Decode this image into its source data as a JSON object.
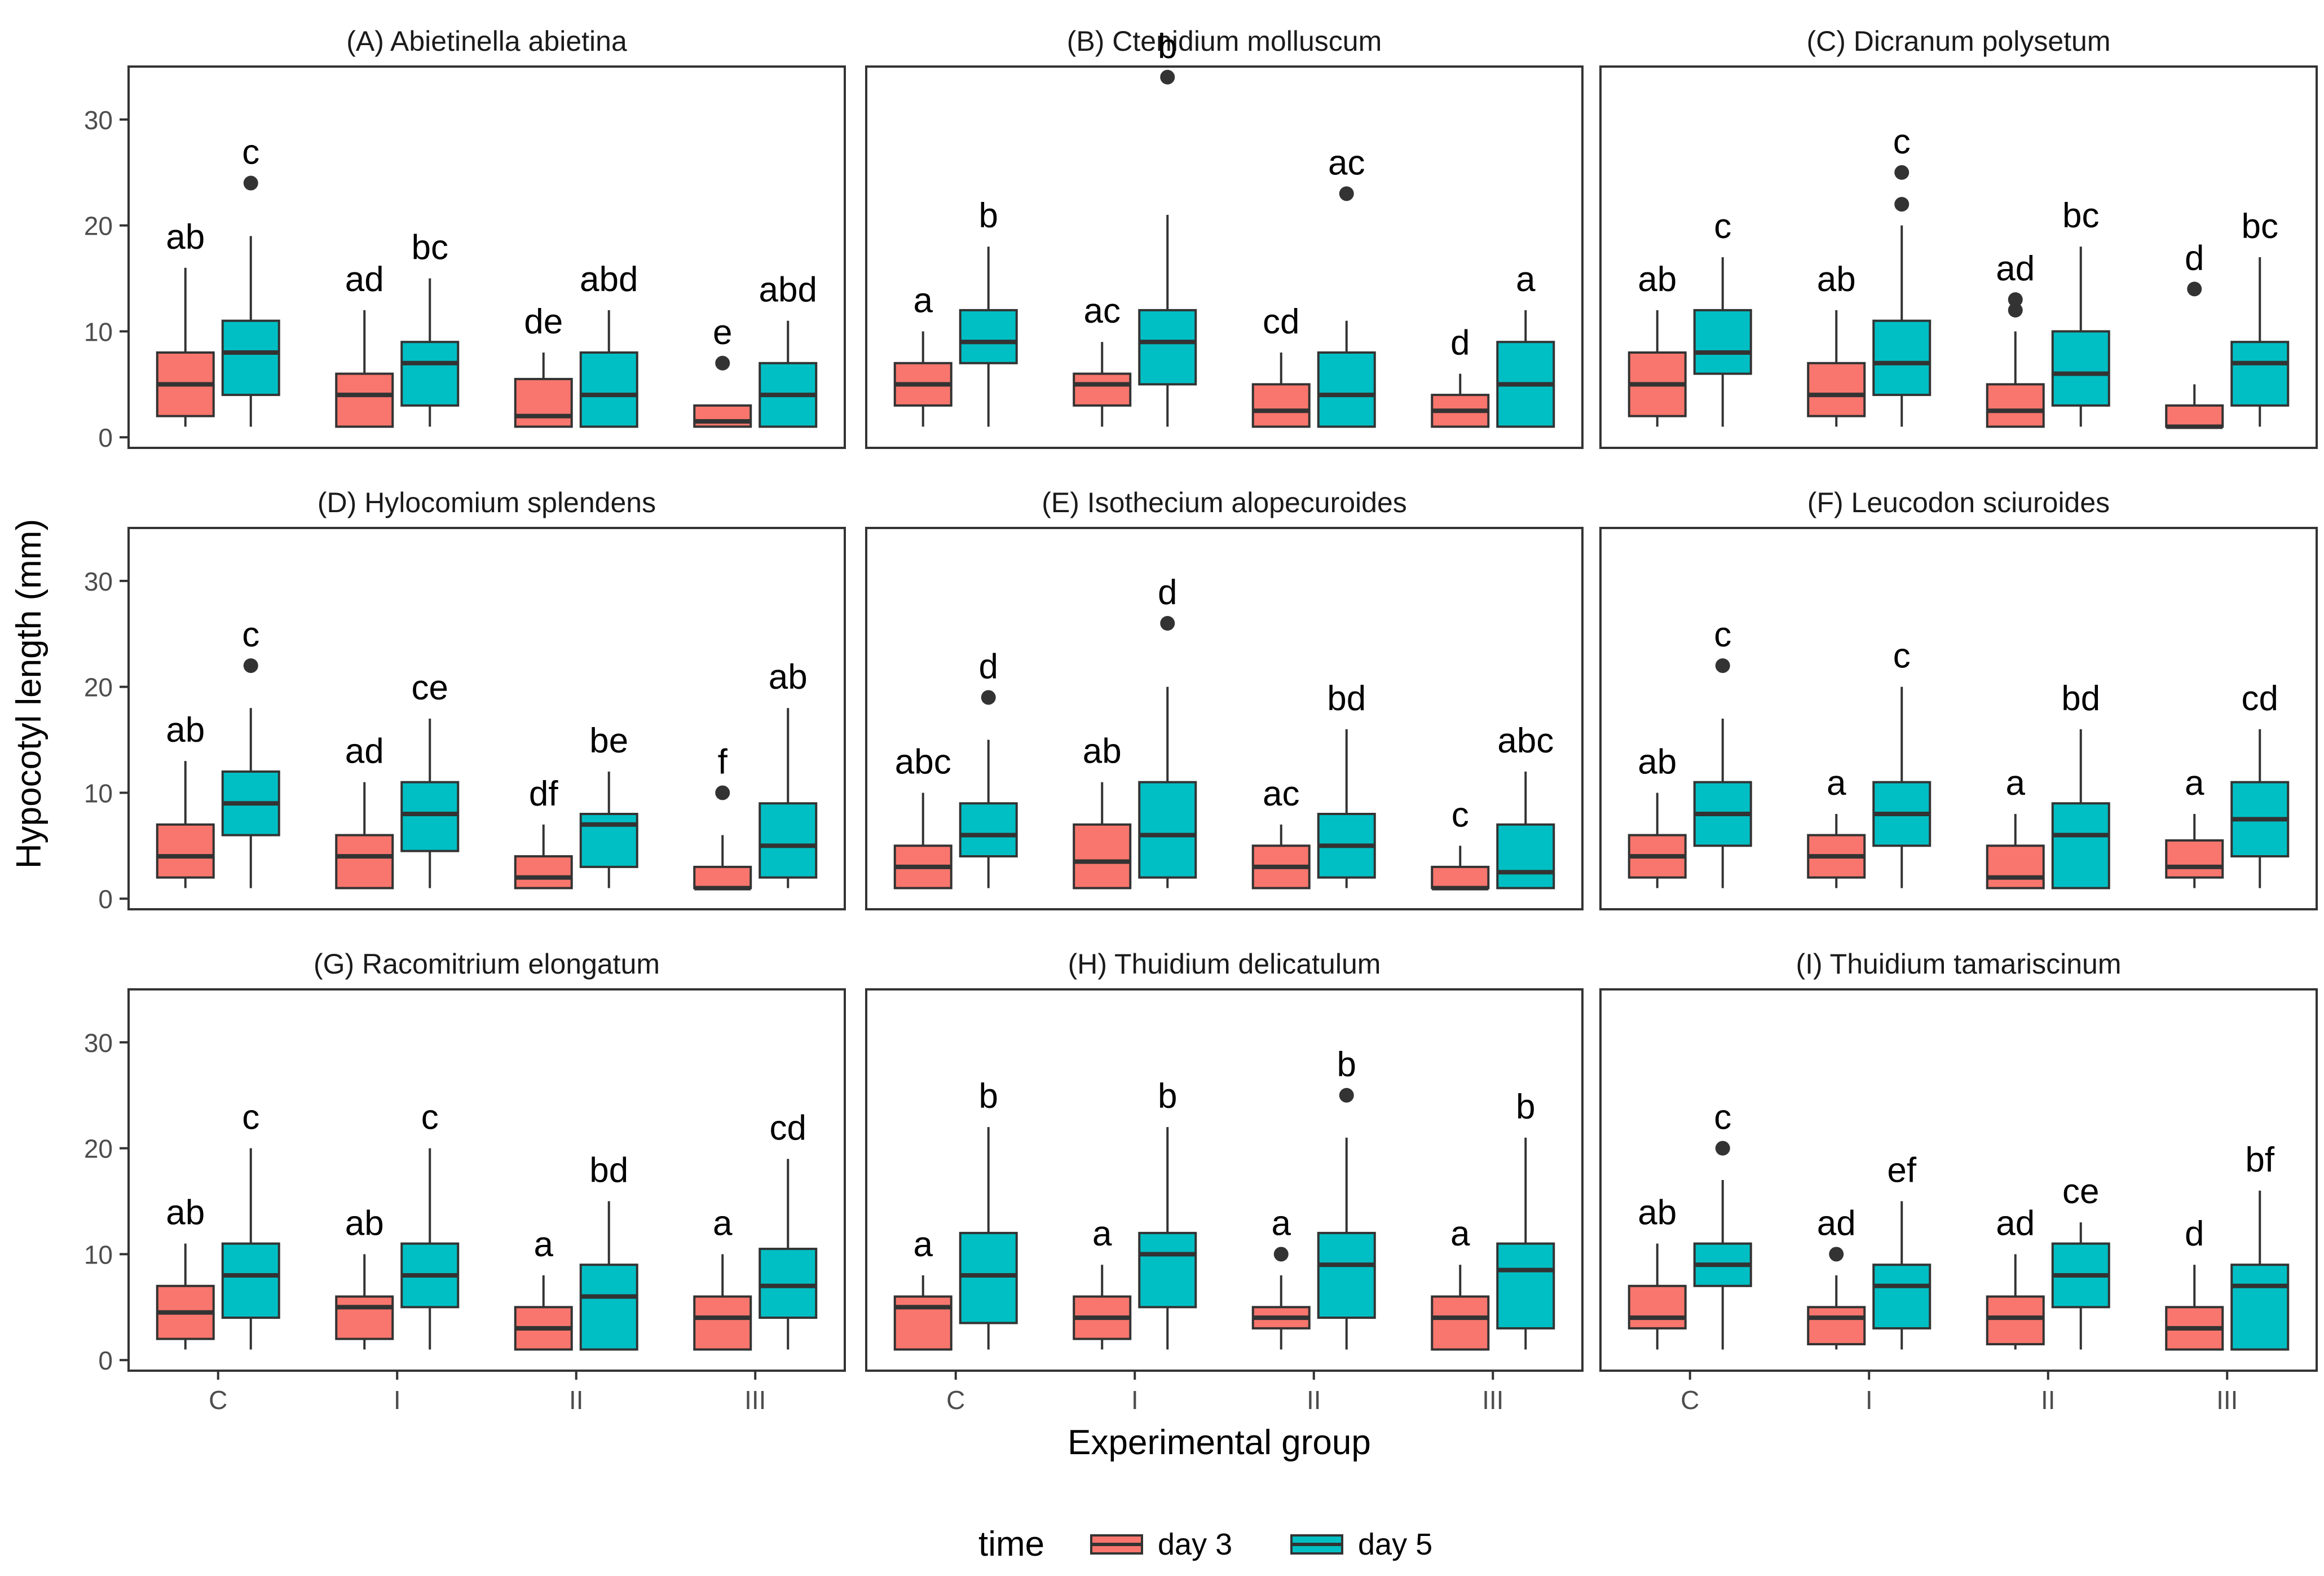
{
  "chart_data": {
    "type": "boxplot-facets",
    "ylabel": "Hypocotyl length (mm)",
    "xlabel": "Experimental group",
    "categories": [
      "C",
      "I",
      "II",
      "III"
    ],
    "yticks": [
      0,
      10,
      20,
      30
    ],
    "ylim": [
      -1,
      35
    ],
    "legend": {
      "title": "time",
      "items": [
        {
          "label": "day 3",
          "color": "#F8766D"
        },
        {
          "label": "day 5",
          "color": "#00BFC4"
        }
      ]
    },
    "series_names": [
      "day 3",
      "day 5"
    ],
    "panels": [
      {
        "title": "(A) Abietinella abietina",
        "groups": [
          {
            "day3": {
              "min": 1,
              "q1": 2,
              "median": 5,
              "q3": 8,
              "max": 16,
              "outliers": [],
              "letter": "ab"
            },
            "day5": {
              "min": 1,
              "q1": 4,
              "median": 8,
              "q3": 11,
              "max": 19,
              "outliers": [
                24
              ],
              "letter": "c"
            }
          },
          {
            "day3": {
              "min": 1,
              "q1": 1,
              "median": 4,
              "q3": 6,
              "max": 12,
              "outliers": [],
              "letter": "ad"
            },
            "day5": {
              "min": 1,
              "q1": 3,
              "median": 7,
              "q3": 9,
              "max": 15,
              "outliers": [],
              "letter": "bc"
            }
          },
          {
            "day3": {
              "min": 1,
              "q1": 1,
              "median": 2,
              "q3": 5.5,
              "max": 8,
              "outliers": [],
              "letter": "de"
            },
            "day5": {
              "min": 1,
              "q1": 1,
              "median": 4,
              "q3": 8,
              "max": 12,
              "outliers": [],
              "letter": "abd"
            }
          },
          {
            "day3": {
              "min": 1,
              "q1": 1,
              "median": 1.5,
              "q3": 3,
              "max": 3,
              "outliers": [
                7
              ],
              "letter": "e"
            },
            "day5": {
              "min": 1,
              "q1": 1,
              "median": 4,
              "q3": 7,
              "max": 11,
              "outliers": [],
              "letter": "abd"
            }
          }
        ]
      },
      {
        "title": "(B) Ctenidium molluscum",
        "groups": [
          {
            "day3": {
              "min": 1,
              "q1": 3,
              "median": 5,
              "q3": 7,
              "max": 10,
              "outliers": [],
              "letter": "a"
            },
            "day5": {
              "min": 1,
              "q1": 7,
              "median": 9,
              "q3": 12,
              "max": 18,
              "outliers": [],
              "letter": "b"
            }
          },
          {
            "day3": {
              "min": 1,
              "q1": 3,
              "median": 5,
              "q3": 6,
              "max": 9,
              "outliers": [],
              "letter": "ac"
            },
            "day5": {
              "min": 1,
              "q1": 5,
              "median": 9,
              "q3": 12,
              "max": 21,
              "outliers": [
                34
              ],
              "letter": "b"
            }
          },
          {
            "day3": {
              "min": 1,
              "q1": 1,
              "median": 2.5,
              "q3": 5,
              "max": 8,
              "outliers": [],
              "letter": "cd"
            },
            "day5": {
              "min": 1,
              "q1": 1,
              "median": 4,
              "q3": 8,
              "max": 11,
              "outliers": [
                23
              ],
              "letter": "ac"
            }
          },
          {
            "day3": {
              "min": 1,
              "q1": 1,
              "median": 2.5,
              "q3": 4,
              "max": 6,
              "outliers": [],
              "letter": "d"
            },
            "day5": {
              "min": 1,
              "q1": 1,
              "median": 5,
              "q3": 9,
              "max": 12,
              "outliers": [],
              "letter": "a"
            }
          }
        ]
      },
      {
        "title": "(C) Dicranum polysetum",
        "groups": [
          {
            "day3": {
              "min": 1,
              "q1": 2,
              "median": 5,
              "q3": 8,
              "max": 12,
              "outliers": [],
              "letter": "ab"
            },
            "day5": {
              "min": 1,
              "q1": 6,
              "median": 8,
              "q3": 12,
              "max": 17,
              "outliers": [],
              "letter": "c"
            }
          },
          {
            "day3": {
              "min": 1,
              "q1": 2,
              "median": 4,
              "q3": 7,
              "max": 12,
              "outliers": [],
              "letter": "ab"
            },
            "day5": {
              "min": 1,
              "q1": 4,
              "median": 7,
              "q3": 11,
              "max": 20,
              "outliers": [
                22,
                25
              ],
              "letter": "c"
            }
          },
          {
            "day3": {
              "min": 1,
              "q1": 1,
              "median": 2.5,
              "q3": 5,
              "max": 10,
              "outliers": [
                12,
                13
              ],
              "letter": "ad"
            },
            "day5": {
              "min": 1,
              "q1": 3,
              "median": 6,
              "q3": 10,
              "max": 18,
              "outliers": [],
              "letter": "bc"
            }
          },
          {
            "day3": {
              "min": 1,
              "q1": 1,
              "median": 1,
              "q3": 3,
              "max": 5,
              "outliers": [
                14
              ],
              "letter": "d"
            },
            "day5": {
              "min": 1,
              "q1": 3,
              "median": 7,
              "q3": 9,
              "max": 17,
              "outliers": [],
              "letter": "bc"
            }
          }
        ]
      },
      {
        "title": "(D) Hylocomium splendens",
        "groups": [
          {
            "day3": {
              "min": 1,
              "q1": 2,
              "median": 4,
              "q3": 7,
              "max": 13,
              "outliers": [],
              "letter": "ab"
            },
            "day5": {
              "min": 1,
              "q1": 6,
              "median": 9,
              "q3": 12,
              "max": 18,
              "outliers": [
                22
              ],
              "letter": "c"
            }
          },
          {
            "day3": {
              "min": 1,
              "q1": 1,
              "median": 4,
              "q3": 6,
              "max": 11,
              "outliers": [],
              "letter": "ad"
            },
            "day5": {
              "min": 1,
              "q1": 4.5,
              "median": 8,
              "q3": 11,
              "max": 17,
              "outliers": [],
              "letter": "ce"
            }
          },
          {
            "day3": {
              "min": 1,
              "q1": 1,
              "median": 2,
              "q3": 4,
              "max": 7,
              "outliers": [],
              "letter": "df"
            },
            "day5": {
              "min": 1,
              "q1": 3,
              "median": 7,
              "q3": 8,
              "max": 12,
              "outliers": [],
              "letter": "be"
            }
          },
          {
            "day3": {
              "min": 1,
              "q1": 1,
              "median": 1,
              "q3": 3,
              "max": 6,
              "outliers": [
                10
              ],
              "letter": "f"
            },
            "day5": {
              "min": 1,
              "q1": 2,
              "median": 5,
              "q3": 9,
              "max": 18,
              "outliers": [],
              "letter": "ab"
            }
          }
        ]
      },
      {
        "title": "(E) Isothecium alopecuroides",
        "groups": [
          {
            "day3": {
              "min": 1,
              "q1": 1,
              "median": 3,
              "q3": 5,
              "max": 10,
              "outliers": [],
              "letter": "abc"
            },
            "day5": {
              "min": 1,
              "q1": 4,
              "median": 6,
              "q3": 9,
              "max": 15,
              "outliers": [
                19
              ],
              "letter": "d"
            }
          },
          {
            "day3": {
              "min": 1,
              "q1": 1,
              "median": 3.5,
              "q3": 7,
              "max": 11,
              "outliers": [],
              "letter": "ab"
            },
            "day5": {
              "min": 1,
              "q1": 2,
              "median": 6,
              "q3": 11,
              "max": 20,
              "outliers": [
                26
              ],
              "letter": "d"
            }
          },
          {
            "day3": {
              "min": 1,
              "q1": 1,
              "median": 3,
              "q3": 5,
              "max": 7,
              "outliers": [],
              "letter": "ac"
            },
            "day5": {
              "min": 1,
              "q1": 2,
              "median": 5,
              "q3": 8,
              "max": 16,
              "outliers": [],
              "letter": "bd"
            }
          },
          {
            "day3": {
              "min": 1,
              "q1": 1,
              "median": 1,
              "q3": 3,
              "max": 5,
              "outliers": [],
              "letter": "c"
            },
            "day5": {
              "min": 1,
              "q1": 1,
              "median": 2.5,
              "q3": 7,
              "max": 12,
              "outliers": [],
              "letter": "abc"
            }
          }
        ]
      },
      {
        "title": "(F) Leucodon sciuroides",
        "groups": [
          {
            "day3": {
              "min": 1,
              "q1": 2,
              "median": 4,
              "q3": 6,
              "max": 10,
              "outliers": [],
              "letter": "ab"
            },
            "day5": {
              "min": 1,
              "q1": 5,
              "median": 8,
              "q3": 11,
              "max": 17,
              "outliers": [
                22
              ],
              "letter": "c"
            }
          },
          {
            "day3": {
              "min": 1,
              "q1": 2,
              "median": 4,
              "q3": 6,
              "max": 8,
              "outliers": [],
              "letter": "a"
            },
            "day5": {
              "min": 1,
              "q1": 5,
              "median": 8,
              "q3": 11,
              "max": 20,
              "outliers": [],
              "letter": "c"
            }
          },
          {
            "day3": {
              "min": 1,
              "q1": 1,
              "median": 2,
              "q3": 5,
              "max": 8,
              "outliers": [],
              "letter": "a"
            },
            "day5": {
              "min": 1,
              "q1": 1,
              "median": 6,
              "q3": 9,
              "max": 16,
              "outliers": [],
              "letter": "bd"
            }
          },
          {
            "day3": {
              "min": 1,
              "q1": 2,
              "median": 3,
              "q3": 5.5,
              "max": 8,
              "outliers": [],
              "letter": "a"
            },
            "day5": {
              "min": 1,
              "q1": 4,
              "median": 7.5,
              "q3": 11,
              "max": 16,
              "outliers": [],
              "letter": "cd"
            }
          }
        ]
      },
      {
        "title": "(G) Racomitrium elongatum",
        "groups": [
          {
            "day3": {
              "min": 1,
              "q1": 2,
              "median": 4.5,
              "q3": 7,
              "max": 11,
              "outliers": [],
              "letter": "ab"
            },
            "day5": {
              "min": 1,
              "q1": 4,
              "median": 8,
              "q3": 11,
              "max": 20,
              "outliers": [],
              "letter": "c"
            }
          },
          {
            "day3": {
              "min": 1,
              "q1": 2,
              "median": 5,
              "q3": 6,
              "max": 10,
              "outliers": [],
              "letter": "ab"
            },
            "day5": {
              "min": 1,
              "q1": 5,
              "median": 8,
              "q3": 11,
              "max": 20,
              "outliers": [],
              "letter": "c"
            }
          },
          {
            "day3": {
              "min": 1,
              "q1": 1,
              "median": 3,
              "q3": 5,
              "max": 8,
              "outliers": [],
              "letter": "a"
            },
            "day5": {
              "min": 1,
              "q1": 1,
              "median": 6,
              "q3": 9,
              "max": 15,
              "outliers": [],
              "letter": "bd"
            }
          },
          {
            "day3": {
              "min": 1,
              "q1": 1,
              "median": 4,
              "q3": 6,
              "max": 10,
              "outliers": [],
              "letter": "a"
            },
            "day5": {
              "min": 1,
              "q1": 4,
              "median": 7,
              "q3": 10.5,
              "max": 19,
              "outliers": [],
              "letter": "cd"
            }
          }
        ]
      },
      {
        "title": "(H) Thuidium delicatulum",
        "groups": [
          {
            "day3": {
              "min": 1,
              "q1": 1,
              "median": 5,
              "q3": 6,
              "max": 8,
              "outliers": [],
              "letter": "a"
            },
            "day5": {
              "min": 1,
              "q1": 3.5,
              "median": 8,
              "q3": 12,
              "max": 22,
              "outliers": [],
              "letter": "b"
            }
          },
          {
            "day3": {
              "min": 1,
              "q1": 2,
              "median": 4,
              "q3": 6,
              "max": 9,
              "outliers": [],
              "letter": "a"
            },
            "day5": {
              "min": 1,
              "q1": 5,
              "median": 10,
              "q3": 12,
              "max": 22,
              "outliers": [],
              "letter": "b"
            }
          },
          {
            "day3": {
              "min": 1,
              "q1": 3,
              "median": 4,
              "q3": 5,
              "max": 8,
              "outliers": [
                10
              ],
              "letter": "a"
            },
            "day5": {
              "min": 1,
              "q1": 4,
              "median": 9,
              "q3": 12,
              "max": 21,
              "outliers": [
                25
              ],
              "letter": "b"
            }
          },
          {
            "day3": {
              "min": 1,
              "q1": 1,
              "median": 4,
              "q3": 6,
              "max": 9,
              "outliers": [],
              "letter": "a"
            },
            "day5": {
              "min": 1,
              "q1": 3,
              "median": 8.5,
              "q3": 11,
              "max": 21,
              "outliers": [],
              "letter": "b"
            }
          }
        ]
      },
      {
        "title": "(I) Thuidium tamariscinum",
        "groups": [
          {
            "day3": {
              "min": 1,
              "q1": 3,
              "median": 4,
              "q3": 7,
              "max": 11,
              "outliers": [],
              "letter": "ab"
            },
            "day5": {
              "min": 1,
              "q1": 7,
              "median": 9,
              "q3": 11,
              "max": 17,
              "outliers": [
                20
              ],
              "letter": "c"
            }
          },
          {
            "day3": {
              "min": 1,
              "q1": 1.5,
              "median": 4,
              "q3": 5,
              "max": 8,
              "outliers": [
                10
              ],
              "letter": "ad"
            },
            "day5": {
              "min": 1,
              "q1": 3,
              "median": 7,
              "q3": 9,
              "max": 15,
              "outliers": [],
              "letter": "ef"
            }
          },
          {
            "day3": {
              "min": 1,
              "q1": 1.5,
              "median": 4,
              "q3": 6,
              "max": 10,
              "outliers": [],
              "letter": "ad"
            },
            "day5": {
              "min": 1,
              "q1": 5,
              "median": 8,
              "q3": 11,
              "max": 13,
              "outliers": [],
              "letter": "ce"
            }
          },
          {
            "day3": {
              "min": 1,
              "q1": 1,
              "median": 3,
              "q3": 5,
              "max": 9,
              "outliers": [],
              "letter": "d"
            },
            "day5": {
              "min": 1,
              "q1": 1,
              "median": 7,
              "q3": 9,
              "max": 16,
              "outliers": [],
              "letter": "bf"
            }
          }
        ]
      }
    ]
  }
}
